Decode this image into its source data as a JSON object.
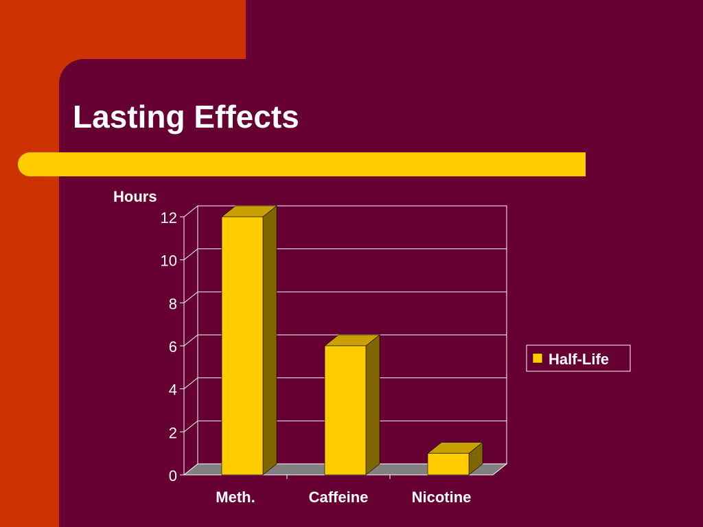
{
  "slide": {
    "title": "Lasting Effects",
    "colors": {
      "background_accent": "#cc3300",
      "panel": "#660033",
      "accent_bar": "#ffcc00",
      "bar_front": "#ffcc00",
      "bar_side": "#806600",
      "bar_top": "#c8a000",
      "floor": "#808080",
      "gridline": "#ffffff",
      "text": "#ffffff"
    }
  },
  "chart_data": {
    "type": "bar",
    "title": "",
    "xlabel": "",
    "ylabel": "Hours",
    "categories": [
      "Meth.",
      "Caffeine",
      "Nicotine"
    ],
    "series": [
      {
        "name": "Half-Life",
        "values": [
          12,
          6,
          1
        ]
      }
    ],
    "ylim": [
      0,
      12
    ],
    "yticks": [
      "0",
      "2",
      "4",
      "6",
      "8",
      "10",
      "12"
    ],
    "grid": true,
    "legend": "right",
    "style": "3d"
  }
}
